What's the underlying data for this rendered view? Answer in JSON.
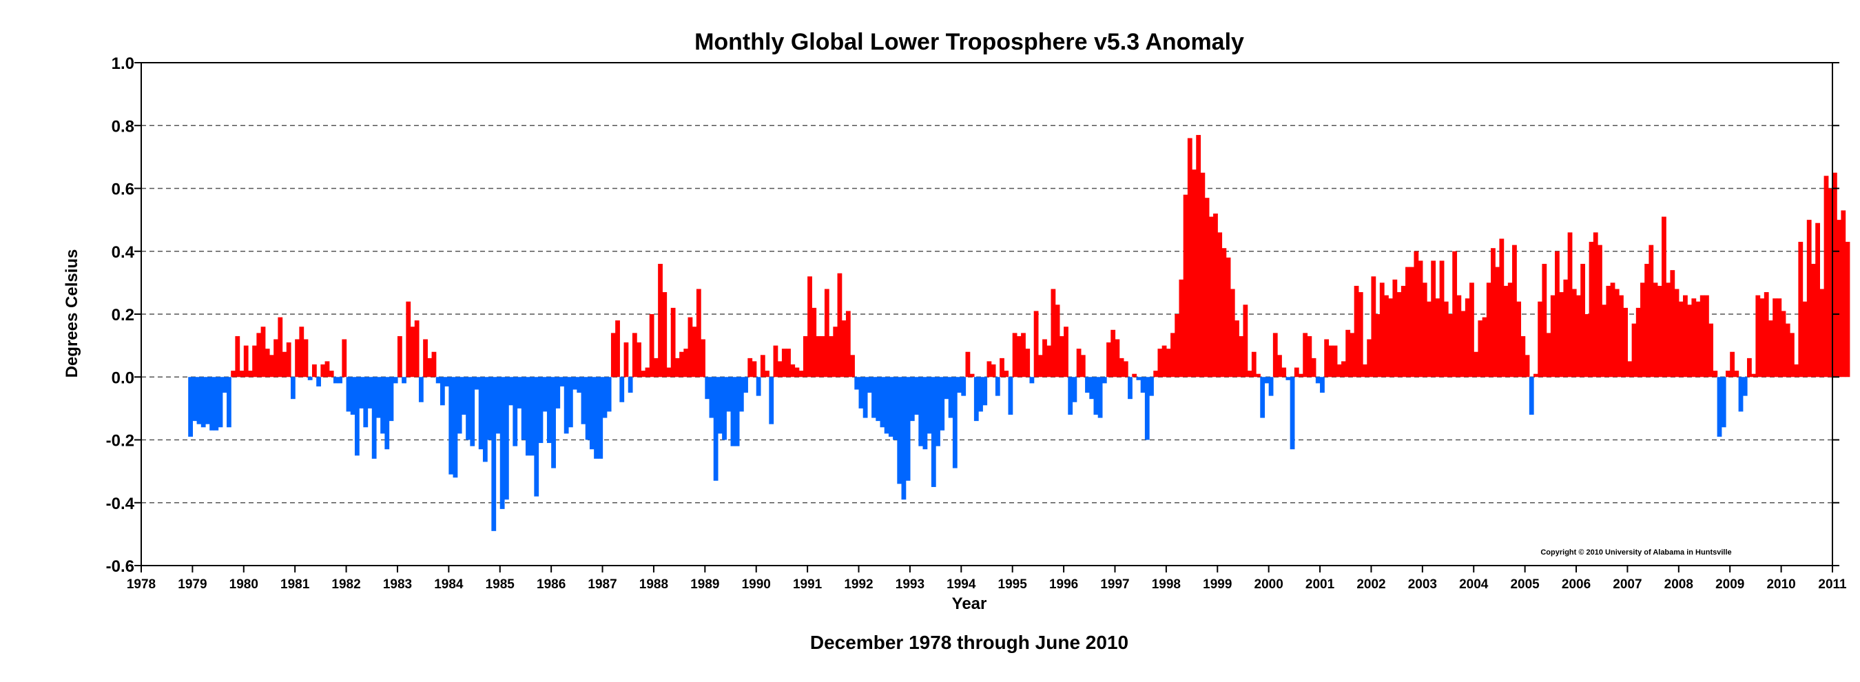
{
  "chart_data": {
    "type": "bar",
    "title": "Monthly Global Lower Troposphere v5.3 Anomaly",
    "xlabel": "Year",
    "ylabel": "Degrees Celsius",
    "subtitle": "December 1978 through June 2010",
    "copyright": "Copyright © 2010 University of Alabama in Huntsville",
    "start_date": "1978-12",
    "xlim": [
      1978,
      2011
    ],
    "ylim": [
      -0.6,
      1.0
    ],
    "x_ticks": [
      "1978",
      "1979",
      "1980",
      "1981",
      "1982",
      "1983",
      "1984",
      "1985",
      "1986",
      "1987",
      "1988",
      "1989",
      "1990",
      "1991",
      "1992",
      "1993",
      "1994",
      "1995",
      "1996",
      "1997",
      "1998",
      "1999",
      "2000",
      "2001",
      "2002",
      "2003",
      "2004",
      "2005",
      "2006",
      "2007",
      "2008",
      "2009",
      "2010",
      "2011"
    ],
    "y_ticks": [
      "1.0",
      "0.8",
      "0.6",
      "0.4",
      "0.2",
      "0.0",
      "-0.2",
      "-0.4",
      "-0.6"
    ],
    "grid": "dashed horizontal",
    "colors": {
      "positive": "#ff0000",
      "negative": "#0066ff"
    },
    "series": [
      {
        "values": [
          -0.19,
          -0.14,
          -0.15,
          -0.16,
          -0.15,
          -0.17,
          -0.17,
          -0.16,
          -0.05,
          -0.16,
          0.02,
          0.13,
          0.02,
          0.1,
          0.02,
          0.1,
          0.14,
          0.16,
          0.09,
          0.07,
          0.12,
          0.19,
          0.08,
          0.11,
          -0.07,
          0.12,
          0.16,
          0.12,
          -0.01,
          0.04,
          -0.03,
          0.04,
          0.05,
          0.02,
          -0.02,
          -0.02,
          0.12,
          -0.11,
          -0.12,
          -0.25,
          -0.1,
          -0.16,
          -0.1,
          -0.26,
          -0.13,
          -0.18,
          -0.23,
          -0.14,
          -0.02,
          0.13,
          -0.02,
          0.24,
          0.16,
          0.18,
          -0.08,
          0.12,
          0.06,
          0.08,
          -0.02,
          -0.09,
          -0.03,
          -0.31,
          -0.32,
          -0.18,
          -0.12,
          -0.2,
          -0.22,
          -0.04,
          -0.23,
          -0.27,
          -0.2,
          -0.49,
          -0.18,
          -0.42,
          -0.39,
          -0.09,
          -0.22,
          -0.1,
          -0.2,
          -0.25,
          -0.25,
          -0.38,
          -0.21,
          -0.11,
          -0.21,
          -0.29,
          -0.1,
          -0.03,
          -0.18,
          -0.16,
          -0.04,
          -0.05,
          -0.15,
          -0.2,
          -0.23,
          -0.26,
          -0.26,
          -0.13,
          -0.11,
          0.14,
          0.18,
          -0.08,
          0.11,
          -0.05,
          0.14,
          0.11,
          0.02,
          0.03,
          0.2,
          0.06,
          0.36,
          0.27,
          0.03,
          0.22,
          0.06,
          0.08,
          0.09,
          0.19,
          0.16,
          0.28,
          0.12,
          -0.07,
          -0.13,
          -0.33,
          -0.18,
          -0.2,
          -0.11,
          -0.22,
          -0.22,
          -0.11,
          -0.05,
          0.06,
          0.05,
          -0.06,
          0.07,
          0.02,
          -0.15,
          0.1,
          0.05,
          0.09,
          0.09,
          0.04,
          0.03,
          0.02,
          0.13,
          0.32,
          0.22,
          0.13,
          0.13,
          0.28,
          0.13,
          0.16,
          0.33,
          0.18,
          0.21,
          0.07,
          -0.04,
          -0.1,
          -0.13,
          -0.05,
          -0.13,
          -0.14,
          -0.16,
          -0.18,
          -0.19,
          -0.2,
          -0.34,
          -0.39,
          -0.33,
          -0.14,
          -0.12,
          -0.22,
          -0.23,
          -0.18,
          -0.35,
          -0.22,
          -0.17,
          -0.07,
          -0.13,
          -0.29,
          -0.05,
          -0.06,
          0.08,
          0.01,
          -0.14,
          -0.11,
          -0.09,
          0.05,
          0.04,
          -0.06,
          0.06,
          0.02,
          -0.12,
          0.14,
          0.13,
          0.14,
          0.09,
          -0.02,
          0.21,
          0.07,
          0.12,
          0.1,
          0.28,
          0.23,
          0.13,
          0.16,
          -0.12,
          -0.08,
          0.09,
          0.07,
          -0.05,
          -0.07,
          -0.12,
          -0.13,
          -0.02,
          0.11,
          0.15,
          0.12,
          0.06,
          0.05,
          -0.07,
          0.01,
          -0.01,
          -0.05,
          -0.2,
          -0.06,
          0.02,
          0.09,
          0.1,
          0.09,
          0.14,
          0.2,
          0.31,
          0.58,
          0.76,
          0.66,
          0.77,
          0.65,
          0.57,
          0.51,
          0.52,
          0.46,
          0.41,
          0.38,
          0.28,
          0.18,
          0.13,
          0.23,
          0.02,
          0.08,
          0.01,
          -0.13,
          -0.02,
          -0.06,
          0.14,
          0.07,
          0.03,
          -0.01,
          -0.23,
          0.03,
          0.01,
          0.14,
          0.13,
          0.06,
          -0.02,
          -0.05,
          0.12,
          0.1,
          0.1,
          0.04,
          0.05,
          0.15,
          0.14,
          0.29,
          0.27,
          0.04,
          0.12,
          0.32,
          0.2,
          0.3,
          0.26,
          0.25,
          0.31,
          0.27,
          0.29,
          0.35,
          0.35,
          0.4,
          0.37,
          0.3,
          0.24,
          0.37,
          0.25,
          0.37,
          0.24,
          0.2,
          0.4,
          0.26,
          0.21,
          0.25,
          0.3,
          0.08,
          0.18,
          0.19,
          0.3,
          0.41,
          0.35,
          0.44,
          0.29,
          0.3,
          0.42,
          0.24,
          0.13,
          0.07,
          -0.12,
          0.01,
          0.24,
          0.36,
          0.14,
          0.26,
          0.4,
          0.27,
          0.31,
          0.46,
          0.28,
          0.26,
          0.36,
          0.2,
          0.43,
          0.46,
          0.42,
          0.23,
          0.29,
          0.3,
          0.28,
          0.26,
          0.22,
          0.05,
          0.17,
          0.22,
          0.3,
          0.36,
          0.42,
          0.3,
          0.29,
          0.51,
          0.3,
          0.34,
          0.28,
          0.24,
          0.26,
          0.23,
          0.25,
          0.24,
          0.26,
          0.26,
          0.17,
          0.02,
          -0.19,
          -0.16,
          0.02,
          0.08,
          0.02,
          -0.11,
          -0.06,
          0.06,
          0.01,
          0.26,
          0.25,
          0.27,
          0.18,
          0.25,
          0.25,
          0.21,
          0.17,
          0.14,
          0.04,
          0.43,
          0.24,
          0.5,
          0.36,
          0.49,
          0.28,
          0.64,
          0.6,
          0.65,
          0.5,
          0.53,
          0.43
        ]
      }
    ]
  }
}
